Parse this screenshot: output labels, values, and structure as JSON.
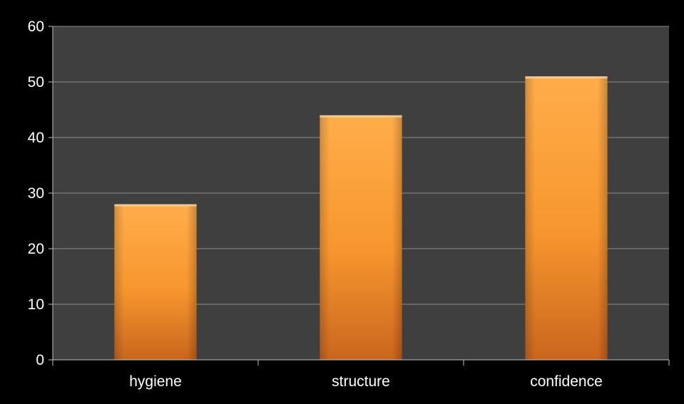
{
  "colors": {
    "background": "#000000",
    "plot_area": "#3f3f3f",
    "gridline": "#8c8c8c",
    "axis_line": "#bfbfbf",
    "text": "#ffffff",
    "bar_light": "#ffad4a",
    "bar_mid": "#f7962e",
    "bar_dark": "#c9661e"
  },
  "chart_data": {
    "type": "bar",
    "categories": [
      "hygiene",
      "structure",
      "confidence"
    ],
    "values": [
      28,
      44,
      51
    ],
    "ylim": [
      0,
      60
    ],
    "yticks": [
      0,
      10,
      20,
      30,
      40,
      50,
      60
    ],
    "ytick_labels": [
      "0",
      "10",
      "20",
      "30",
      "40",
      "50",
      "60"
    ],
    "grid": true,
    "legend": "none"
  }
}
